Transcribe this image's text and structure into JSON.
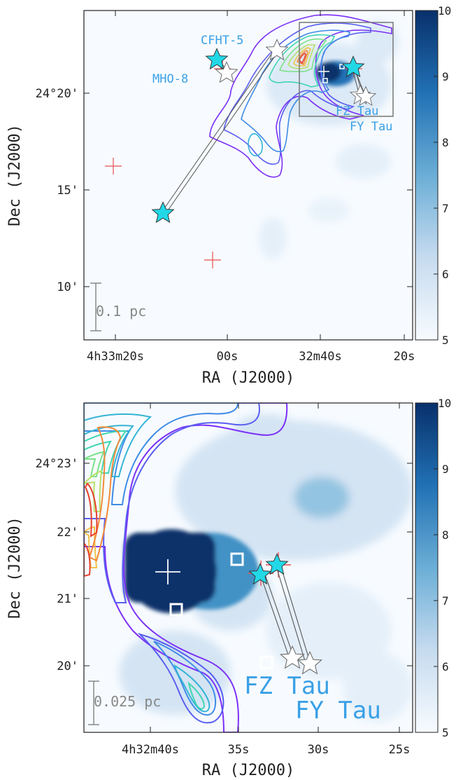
{
  "colorbar": {
    "ticks": [
      "5",
      "6",
      "7",
      "8",
      "9",
      "10"
    ],
    "cmap": "Blues"
  },
  "colors": {
    "contours": [
      "#7b2ff7",
      "#5a5ef0",
      "#3f8be6",
      "#35b4d6",
      "#40d6b2",
      "#7be18a",
      "#b8e06a",
      "#f0c24a",
      "#f28a3a",
      "#e8402e"
    ],
    "star_fill": "#22d8e6",
    "label": "#3aa0e6",
    "cross": "#e85050"
  },
  "chart_data": [
    {
      "type": "heatmap",
      "xlabel": "RA (J2000)",
      "ylabel": "Dec (J2000)",
      "x_ticks": [
        "4h33m20s",
        "00s",
        "32m40s",
        "20s"
      ],
      "y_ticks": [
        "10'",
        "15'",
        "24°20'"
      ],
      "scale_bar": "0.1 pc",
      "labels": {
        "cfht": "CFHT-5",
        "mho": "MHO-8",
        "fz": "FZ Tau",
        "fy": "FY Tau"
      },
      "colorbar_range": [
        5,
        10
      ],
      "zoom_box": true
    },
    {
      "type": "heatmap",
      "xlabel": "RA (J2000)",
      "ylabel": "Dec (J2000)",
      "x_ticks": [
        "4h32m40s",
        "35s",
        "30s",
        "25s"
      ],
      "y_ticks": [
        "20'",
        "21'",
        "22'",
        "24°23'"
      ],
      "scale_bar": "0.025 pc",
      "labels": {
        "fz": "FZ Tau",
        "fy": "FY Tau"
      },
      "colorbar_range": [
        5,
        10
      ]
    }
  ]
}
